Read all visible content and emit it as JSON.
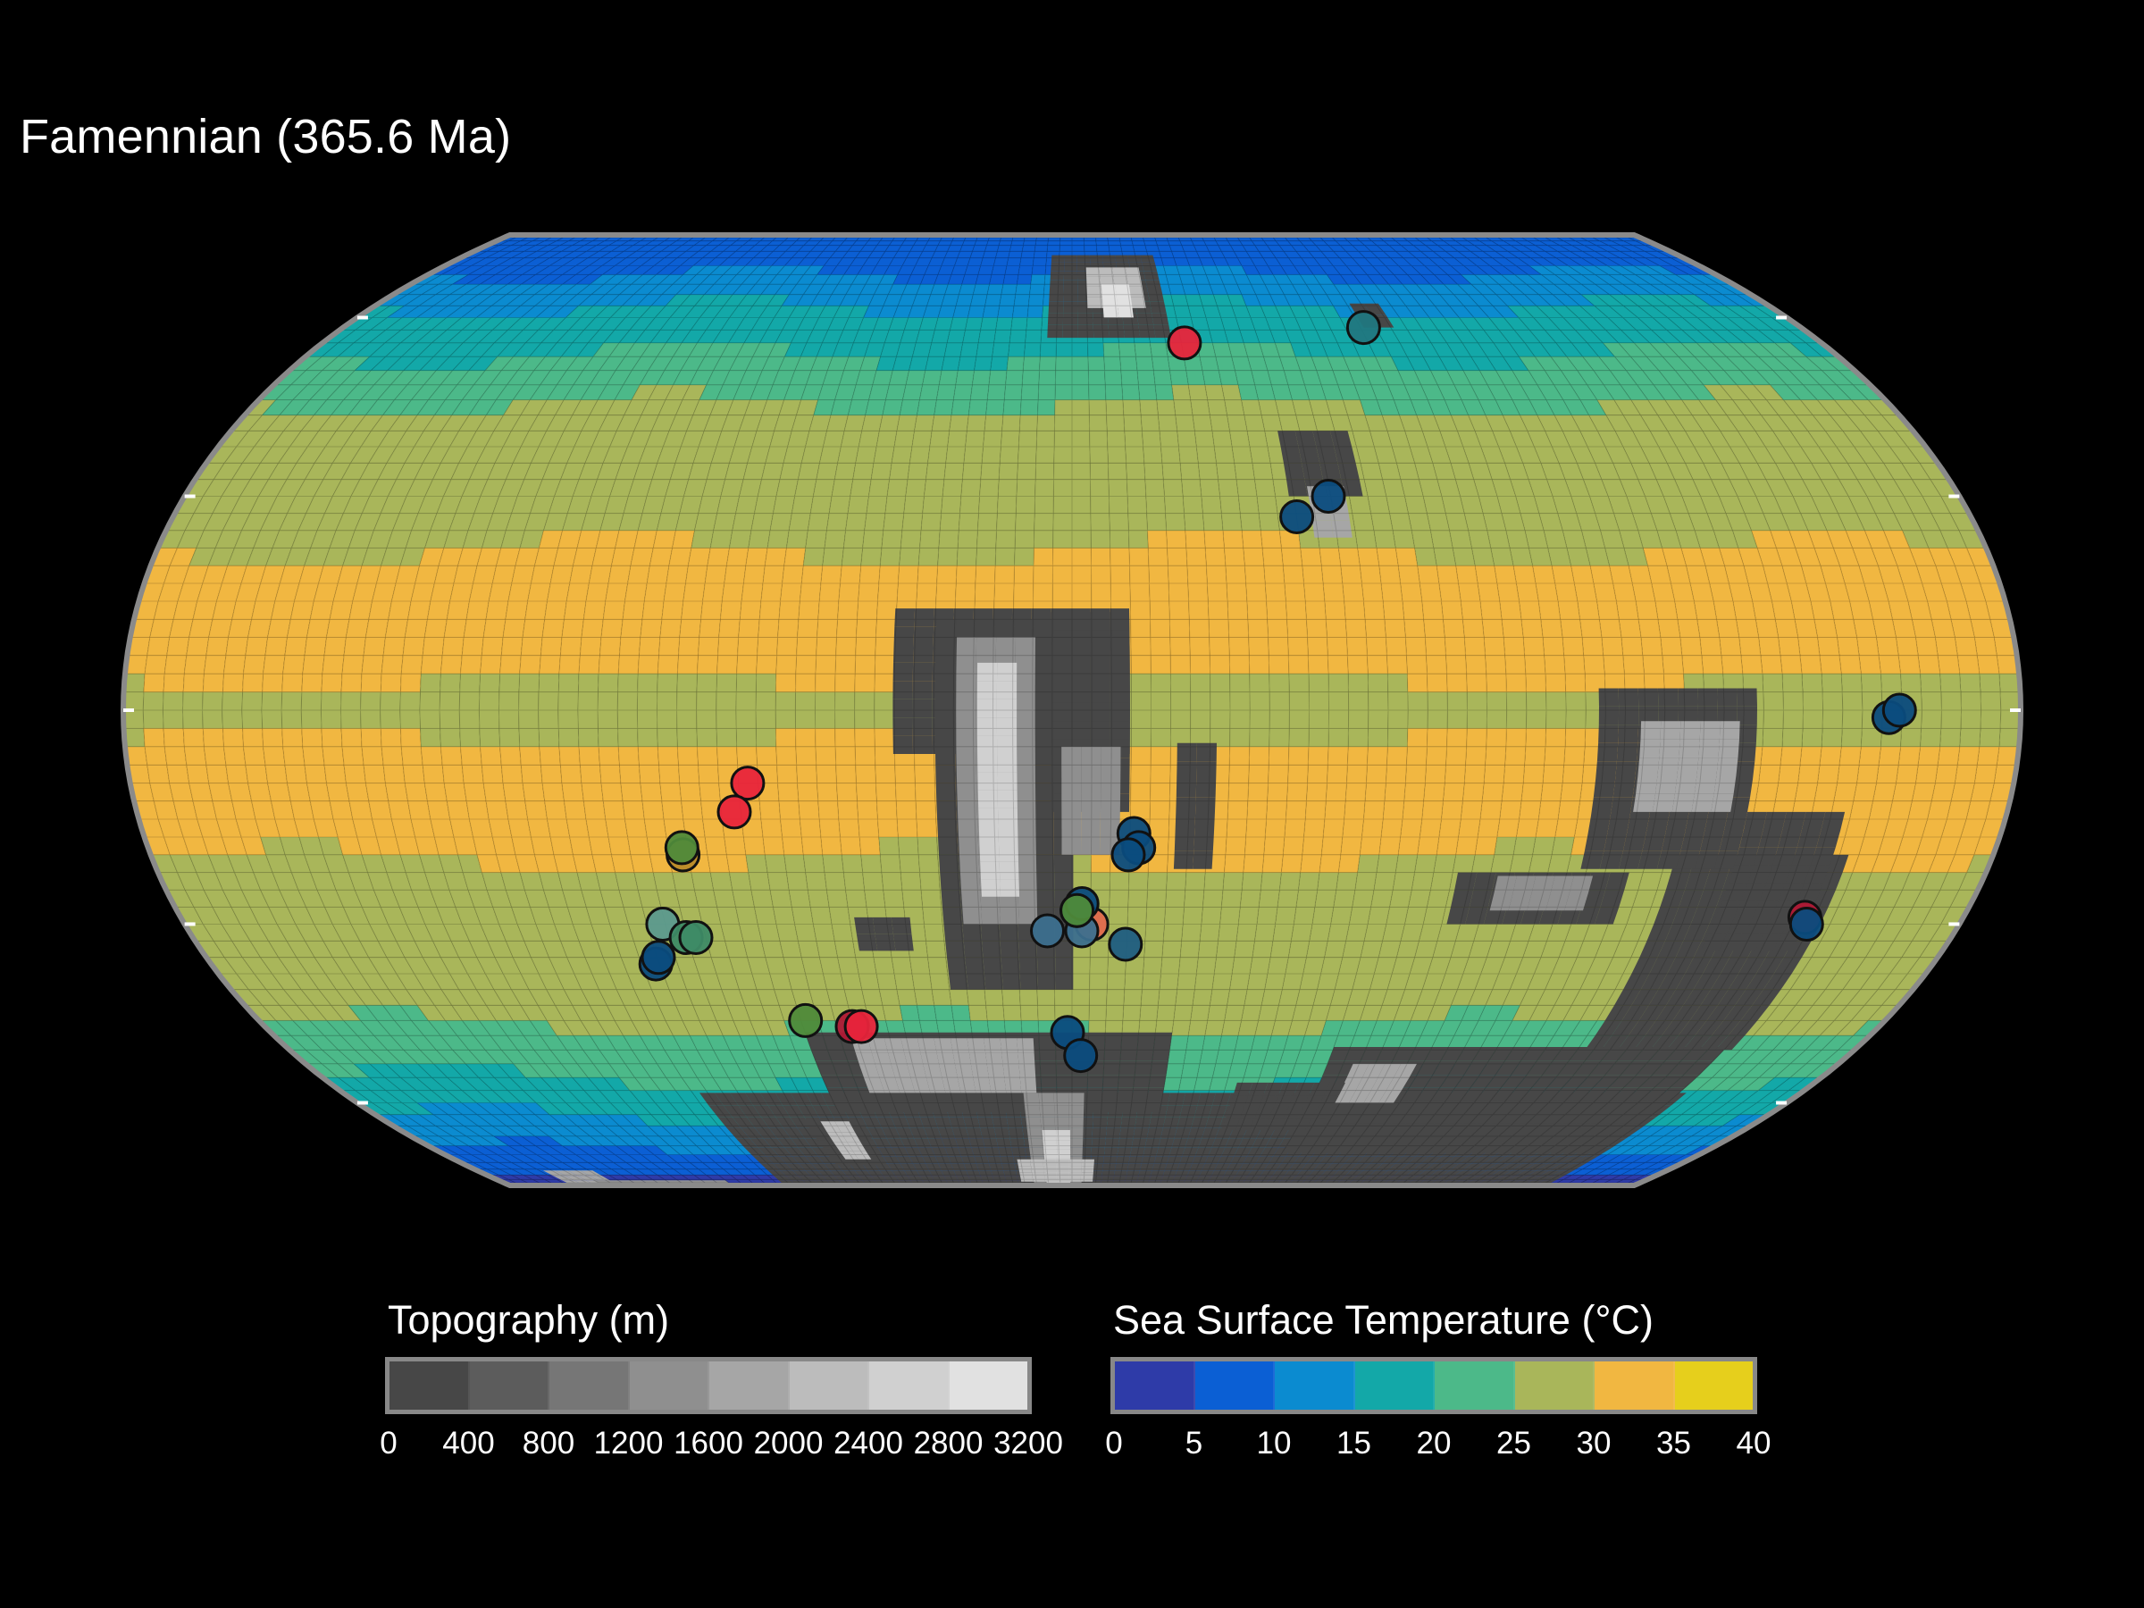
{
  "title": "Famennian (365.6 Ma)",
  "map": {
    "projection": "equal-earth",
    "background": "#000000",
    "outline_color": "#8a8a8a",
    "sst_band_colors_south_to_north": [
      "#2e3ba8",
      "#0b5fd4",
      "#0b8bd0",
      "#13a8a8",
      "#4cb989",
      "#a9b65a",
      "#f1b741"
    ]
  },
  "occurrences": [
    {
      "lon": 27,
      "lat": 55,
      "color": "#e8243b"
    },
    {
      "lon": 72,
      "lat": 58,
      "color": "#21777f"
    },
    {
      "lon": 45,
      "lat": 27,
      "color": "#0b4c7e"
    },
    {
      "lon": 52,
      "lat": 30,
      "color": "#0b4c7e"
    },
    {
      "lon": 155,
      "lat": -1,
      "color": "#0b4c7e"
    },
    {
      "lon": 157,
      "lat": 0,
      "color": "#0b4c7e"
    },
    {
      "lon": -62,
      "lat": -10,
      "color": "#e8243b"
    },
    {
      "lon": -65,
      "lat": -14,
      "color": "#e8243b"
    },
    {
      "lon": -76,
      "lat": -20,
      "color": "#b98a2a"
    },
    {
      "lon": -76,
      "lat": -19,
      "color": "#4f8a3a"
    },
    {
      "lon": -83,
      "lat": -30,
      "color": "#5c9a8e"
    },
    {
      "lon": -87,
      "lat": -36,
      "color": "#0b4c7e"
    },
    {
      "lon": -79,
      "lat": -32,
      "color": "#3e8b66"
    },
    {
      "lon": -77,
      "lat": -32,
      "color": "#3e8b66"
    },
    {
      "lon": -86,
      "lat": -35,
      "color": "#0b4c7e"
    },
    {
      "lon": -59,
      "lat": -45,
      "color": "#4f8a3a"
    },
    {
      "lon": -49,
      "lat": -46,
      "color": "#b01935"
    },
    {
      "lon": -47,
      "lat": -46,
      "color": "#e8243b"
    },
    {
      "lon": 4,
      "lat": -30,
      "color": "#e06a4e"
    },
    {
      "lon": 2,
      "lat": -31,
      "color": "#3c6f8e"
    },
    {
      "lon": 1,
      "lat": -28,
      "color": "#0b4c7e"
    },
    {
      "lon": 2,
      "lat": -27,
      "color": "#0b4c7e"
    },
    {
      "lon": 1,
      "lat": -28,
      "color": "#4f8a3a"
    },
    {
      "lon": -5,
      "lat": -31,
      "color": "#3c6f8e"
    },
    {
      "lon": 11,
      "lat": -33,
      "color": "#1f5e82"
    },
    {
      "lon": 12,
      "lat": -17,
      "color": "#0b4c7e"
    },
    {
      "lon": 13,
      "lat": -19,
      "color": "#0b4c7e"
    },
    {
      "lon": 11,
      "lat": -20,
      "color": "#0b4c7e"
    },
    {
      "lon": -1,
      "lat": -47,
      "color": "#0b4c7e"
    },
    {
      "lon": 2,
      "lat": -51,
      "color": "#0b4c7e"
    },
    {
      "lon": 148,
      "lat": -29,
      "color": "#b01935"
    },
    {
      "lon": 149,
      "lat": -30,
      "color": "#0b4c7e"
    }
  ],
  "legend": {
    "topography": {
      "title": "Topography (m)",
      "colors": [
        "#474747",
        "#5c5c5c",
        "#767676",
        "#8f8f8f",
        "#a6a6a6",
        "#bcbcbc",
        "#d0d0d0",
        "#e1e1e1"
      ],
      "ticks": [
        "0",
        "400",
        "800",
        "1200",
        "1600",
        "2000",
        "2400",
        "2800",
        "3200"
      ]
    },
    "sst": {
      "title": "Sea Surface Temperature (°C)",
      "colors": [
        "#2e3ba8",
        "#0b5fd4",
        "#0b8bd0",
        "#13a8a8",
        "#4cb989",
        "#a9b65a",
        "#f1b741",
        "#e6cf1c"
      ],
      "ticks": [
        "0",
        "5",
        "10",
        "15",
        "20",
        "25",
        "30",
        "35",
        "40"
      ]
    }
  }
}
